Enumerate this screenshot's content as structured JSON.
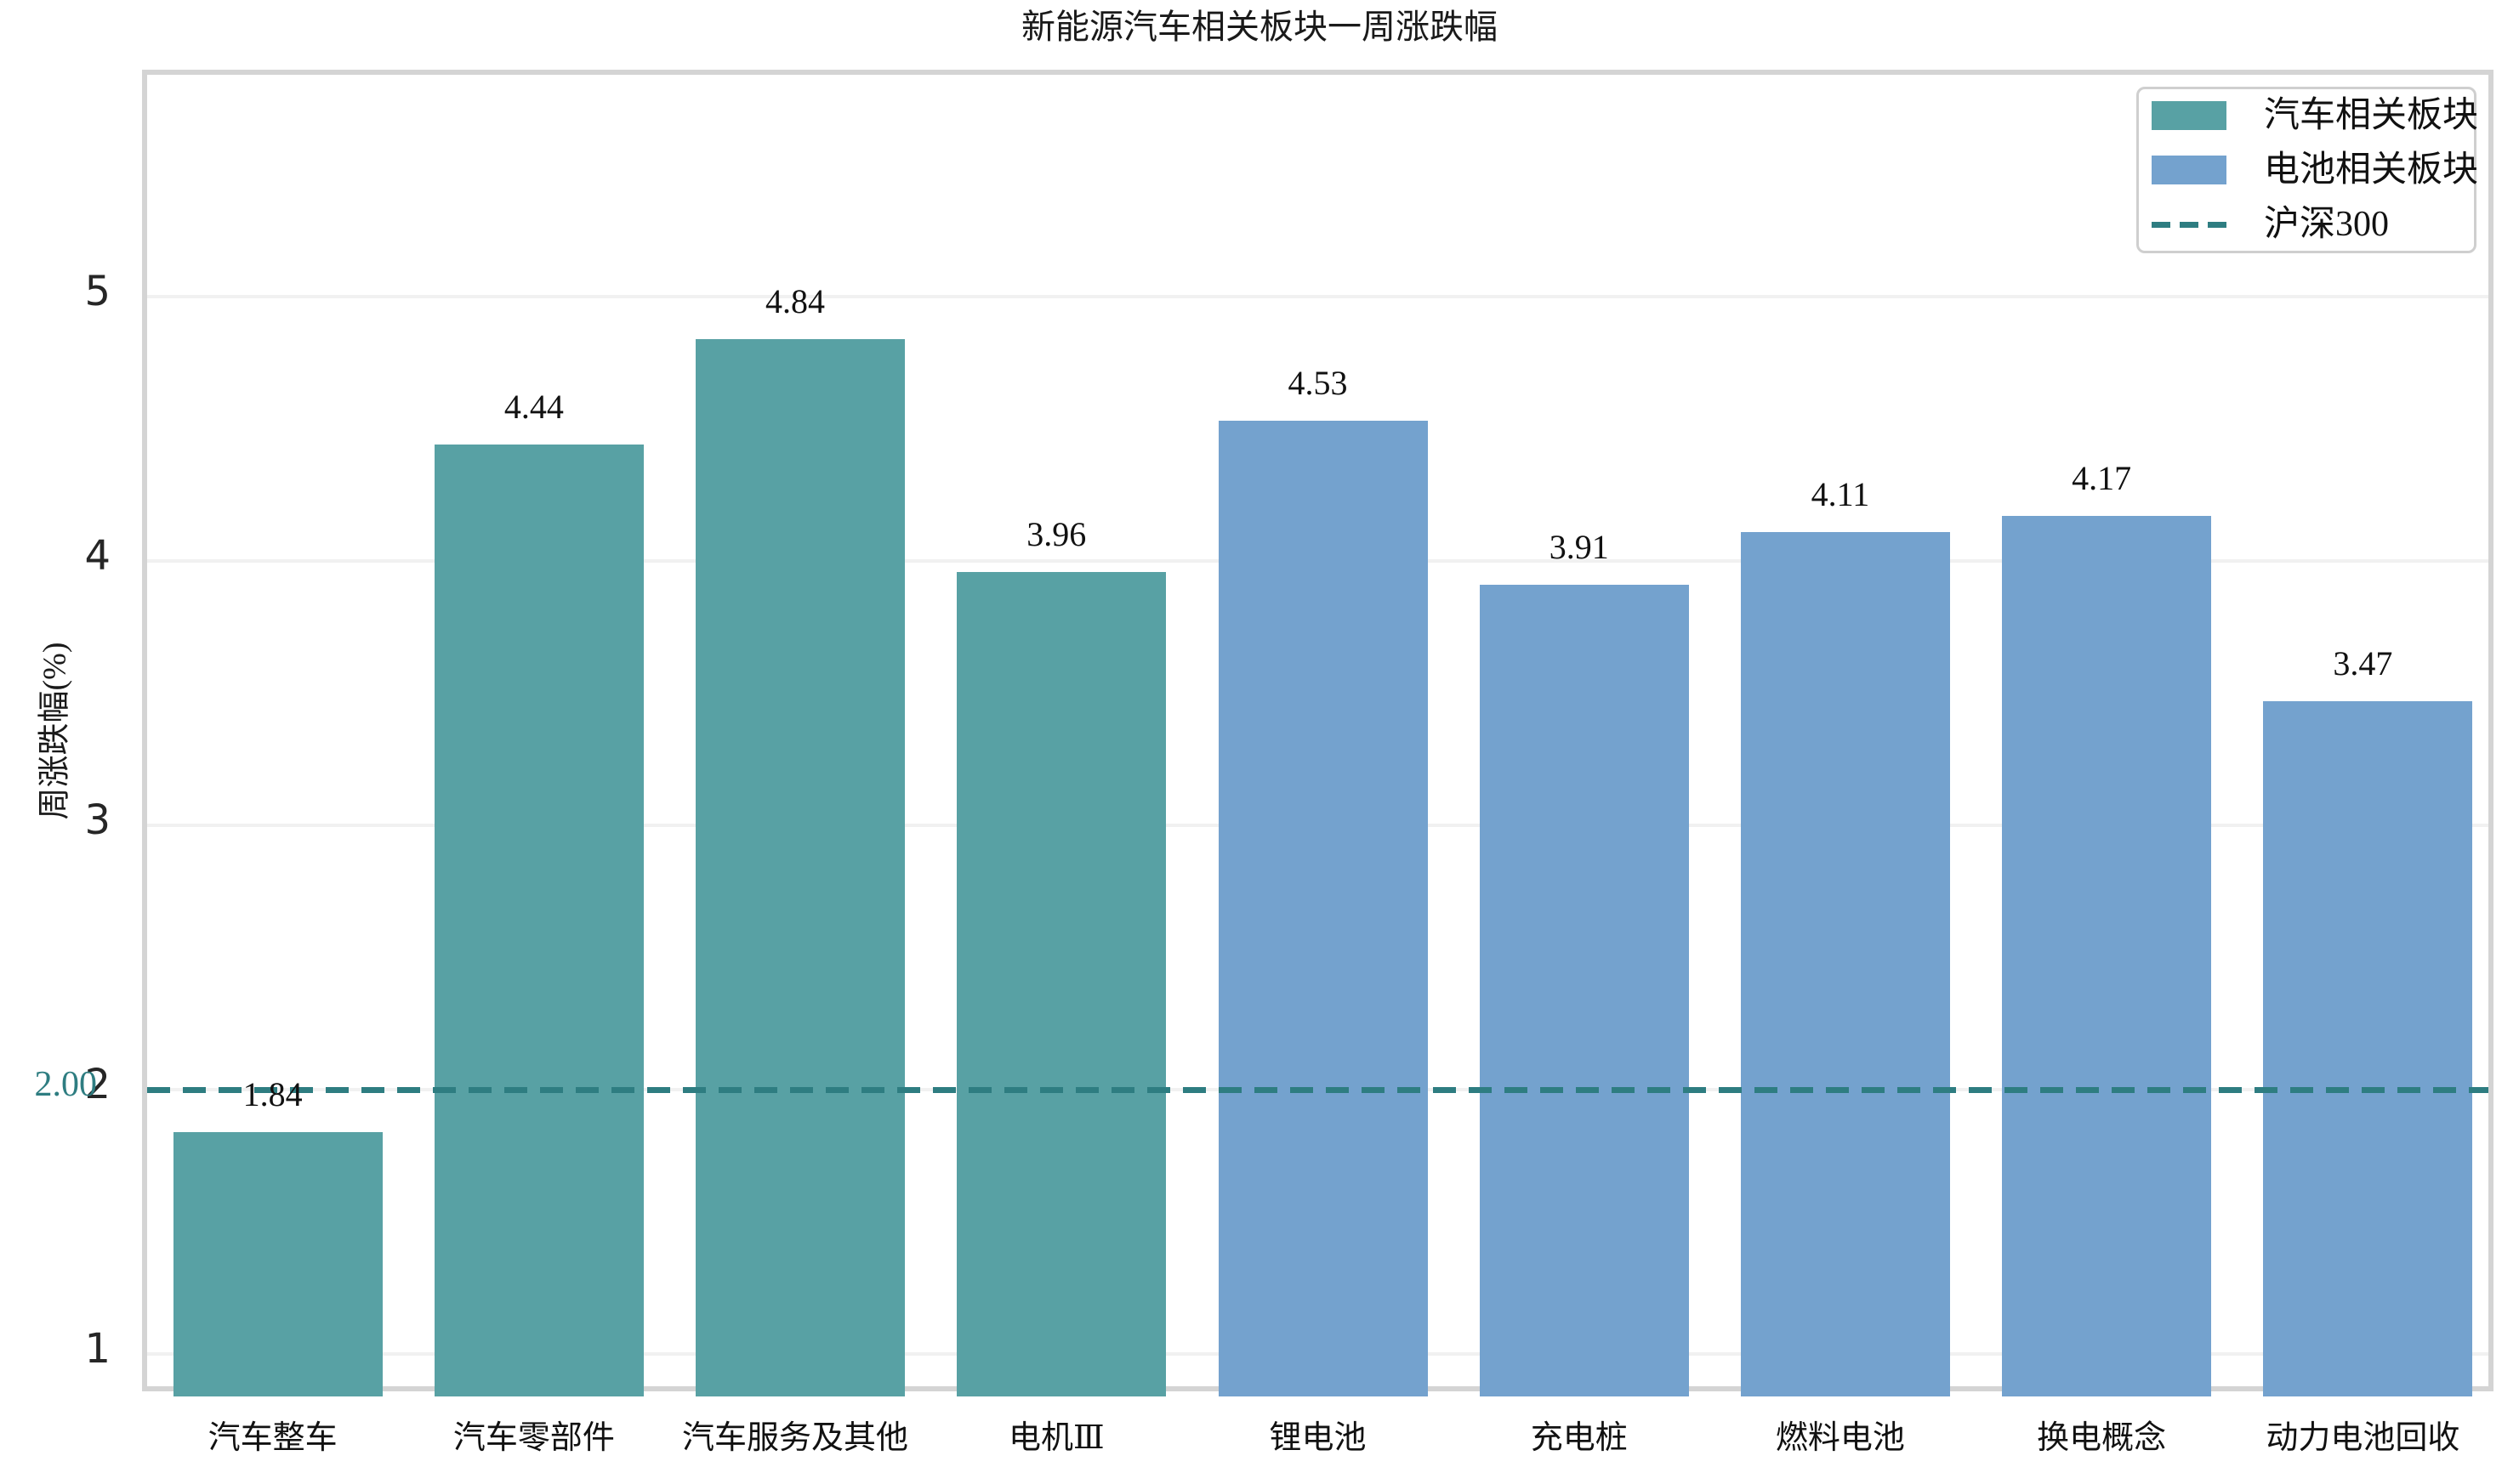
{
  "chart_data": {
    "type": "bar",
    "title": "新能源汽车相关板块一周涨跌幅",
    "ylabel": "周涨跌幅(%)",
    "xlabel": "",
    "categories": [
      "汽车整车",
      "汽车零部件",
      "汽车服务及其他",
      "电机Ⅲ",
      "锂电池",
      "充电桩",
      "燃料电池",
      "换电概念",
      "动力电池回收"
    ],
    "values": [
      1.84,
      4.44,
      4.84,
      3.96,
      4.53,
      3.91,
      4.11,
      4.17,
      3.47
    ],
    "value_labels": [
      "1.84",
      "4.44",
      "4.84",
      "3.96",
      "4.53",
      "3.91",
      "4.11",
      "4.17",
      "3.47"
    ],
    "series": [
      {
        "name": "汽车相关板块",
        "color": "#58a1a4"
      },
      {
        "name": "电池相关板块",
        "color": "#74a2ce"
      }
    ],
    "series_membership": [
      0,
      0,
      0,
      0,
      1,
      1,
      1,
      1,
      1
    ],
    "reference_line": {
      "name": "沪深300",
      "value": 2.0,
      "label": "2.00",
      "color": "#2e7d81",
      "style": "dashed"
    },
    "yticks": [
      "1",
      "2",
      "3",
      "4",
      "5"
    ],
    "ylim": [
      0.84,
      5.84
    ],
    "grid": true,
    "legend_position": "upper right",
    "colors": {
      "grid": "#f1f1f1",
      "spine": "#d4d4d4",
      "tick_text": "#262626",
      "label_text": "#111111"
    }
  }
}
